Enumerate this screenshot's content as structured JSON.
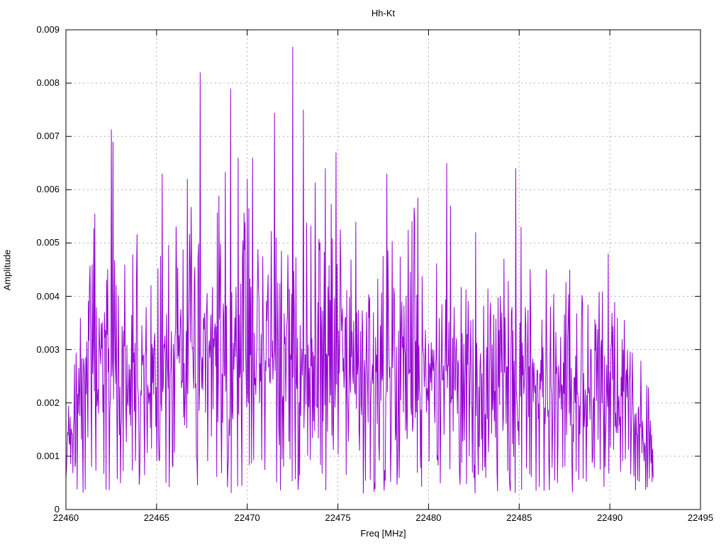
{
  "window": {
    "background_color": "#ffffff"
  },
  "chart_data": {
    "type": "line",
    "title": "Hh-Kt",
    "xlabel": "Freq [MHz]",
    "ylabel": "Amplitude",
    "xlim": [
      22460,
      22495
    ],
    "ylim": [
      0,
      0.009
    ],
    "x_ticks": [
      22460,
      22465,
      22470,
      22475,
      22480,
      22485,
      22490,
      22495
    ],
    "y_ticks": [
      0,
      0.001,
      0.002,
      0.003,
      0.004,
      0.005,
      0.006,
      0.007,
      0.008,
      0.009
    ],
    "y_tick_labels": [
      "0",
      "0.001",
      "0.002",
      "0.003",
      "0.004",
      "0.005",
      "0.006",
      "0.007",
      "0.008",
      "0.009"
    ],
    "grid": true,
    "legend": "none",
    "line_color": "#9400d3",
    "grid_color": "#b0b0b0",
    "axis_color": "#000000",
    "data_x_start": 22460.0,
    "data_x_end": 22492.4,
    "envelope_points": [
      [
        22460.0,
        0.0028
      ],
      [
        22460.4,
        0.003
      ],
      [
        22461.0,
        0.005
      ],
      [
        22461.6,
        0.0056
      ],
      [
        22462.2,
        0.005
      ],
      [
        22462.8,
        0.0052
      ],
      [
        22463.4,
        0.005
      ],
      [
        22464.0,
        0.0053
      ],
      [
        22464.6,
        0.005
      ],
      [
        22465.3,
        0.0058
      ],
      [
        22466.0,
        0.0055
      ],
      [
        22466.7,
        0.0058
      ],
      [
        22467.4,
        0.0055
      ],
      [
        22468.0,
        0.0058
      ],
      [
        22468.8,
        0.006
      ],
      [
        22469.5,
        0.0062
      ],
      [
        22470.2,
        0.0062
      ],
      [
        22470.8,
        0.0055
      ],
      [
        22471.5,
        0.006
      ],
      [
        22472.0,
        0.006
      ],
      [
        22472.8,
        0.0058
      ],
      [
        22473.5,
        0.0062
      ],
      [
        22474.3,
        0.006
      ],
      [
        22475.0,
        0.0055
      ],
      [
        22475.7,
        0.0048
      ],
      [
        22476.3,
        0.0054
      ],
      [
        22477.0,
        0.0046
      ],
      [
        22477.7,
        0.005
      ],
      [
        22478.4,
        0.0052
      ],
      [
        22479.2,
        0.0057
      ],
      [
        22480.0,
        0.0042
      ],
      [
        22480.8,
        0.005
      ],
      [
        22481.5,
        0.0047
      ],
      [
        22482.2,
        0.005
      ],
      [
        22483.0,
        0.0046
      ],
      [
        22483.8,
        0.0048
      ],
      [
        22484.5,
        0.005
      ],
      [
        22485.3,
        0.0047
      ],
      [
        22486.0,
        0.0044
      ],
      [
        22486.8,
        0.0046
      ],
      [
        22487.5,
        0.0044
      ],
      [
        22488.2,
        0.0043
      ],
      [
        22489.0,
        0.004
      ],
      [
        22489.8,
        0.0043
      ],
      [
        22490.5,
        0.0039
      ],
      [
        22491.0,
        0.0034
      ],
      [
        22491.6,
        0.003
      ],
      [
        22492.0,
        0.0027
      ],
      [
        22492.4,
        0.0025
      ]
    ],
    "notable_peaks": [
      [
        22461.6,
        0.00555
      ],
      [
        22462.5,
        0.00713
      ],
      [
        22462.6,
        0.0069
      ],
      [
        22465.3,
        0.0063
      ],
      [
        22466.7,
        0.0062
      ],
      [
        22467.4,
        0.0082
      ],
      [
        22468.8,
        0.00633
      ],
      [
        22469.1,
        0.0079
      ],
      [
        22469.5,
        0.0066
      ],
      [
        22470.0,
        0.0062
      ],
      [
        22470.3,
        0.0066
      ],
      [
        22471.5,
        0.00744
      ],
      [
        22472.5,
        0.00868
      ],
      [
        22473.1,
        0.0075
      ],
      [
        22474.3,
        0.0064
      ],
      [
        22474.9,
        0.0067
      ],
      [
        22476.0,
        0.0054
      ],
      [
        22477.7,
        0.0063
      ],
      [
        22479.4,
        0.00585
      ],
      [
        22481.0,
        0.0065
      ],
      [
        22481.2,
        0.0057
      ],
      [
        22482.6,
        0.0052
      ],
      [
        22484.8,
        0.0064
      ],
      [
        22485.1,
        0.0053
      ],
      [
        22487.8,
        0.0045
      ],
      [
        22489.9,
        0.0048
      ]
    ],
    "noise": {
      "seed": 1337,
      "step_mhz": 0.0295,
      "floor": 0.0003,
      "dip_fraction": 0.1,
      "spike_fraction": 0.08
    }
  }
}
